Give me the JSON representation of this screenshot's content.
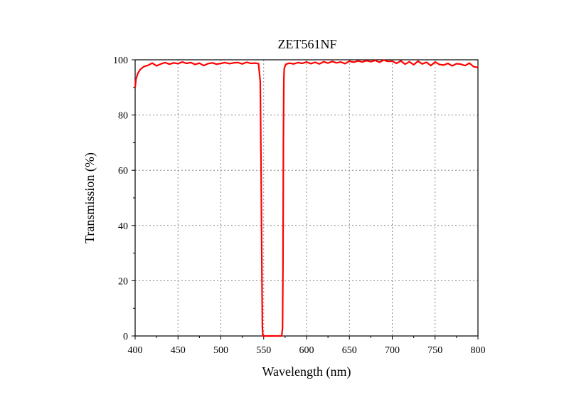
{
  "chart_data": {
    "type": "line",
    "title": "ZET561NF",
    "xlabel": "Wavelength (nm)",
    "ylabel": "Transmission (%)",
    "xlim": [
      400,
      800
    ],
    "ylim": [
      0,
      100
    ],
    "xticks": [
      400,
      450,
      500,
      550,
      600,
      650,
      700,
      750,
      800
    ],
    "yticks": [
      0,
      20,
      40,
      60,
      80,
      100
    ],
    "grid": true,
    "legend": "none",
    "series": [
      {
        "color": "#ff0000",
        "x": [
          400,
          401,
          403,
          406,
          410,
          415,
          420,
          425,
          430,
          435,
          440,
          445,
          450,
          455,
          460,
          465,
          470,
          475,
          480,
          485,
          490,
          495,
          500,
          505,
          510,
          515,
          520,
          525,
          530,
          535,
          540,
          544,
          546,
          547,
          548,
          548.5,
          549,
          550,
          560,
          571,
          572,
          572.5,
          573,
          573.5,
          574,
          576,
          580,
          585,
          590,
          595,
          600,
          605,
          610,
          615,
          620,
          625,
          630,
          635,
          640,
          645,
          650,
          655,
          660,
          665,
          670,
          675,
          680,
          685,
          690,
          695,
          700,
          705,
          710,
          715,
          720,
          725,
          730,
          735,
          740,
          745,
          750,
          755,
          760,
          765,
          770,
          775,
          780,
          785,
          790,
          795,
          800
        ],
        "y": [
          90,
          93,
          95,
          96.5,
          97.5,
          98,
          98.8,
          97.8,
          98.5,
          99,
          98.4,
          98.9,
          98.6,
          99.2,
          98.7,
          99,
          98.3,
          98.8,
          97.9,
          98.6,
          98.9,
          98.4,
          98.7,
          99,
          98.6,
          98.9,
          99,
          98.5,
          99.1,
          98.7,
          98.8,
          98.6,
          92,
          60,
          20,
          3,
          0,
          0,
          0,
          0,
          3,
          25,
          70,
          93,
          97,
          98.4,
          98.8,
          98.5,
          99,
          98.7,
          99.2,
          98.6,
          99.1,
          98.5,
          99.3,
          98.8,
          99.4,
          98.9,
          99.2,
          98.6,
          99.5,
          99.1,
          99.6,
          99.2,
          99.7,
          99.3,
          99.8,
          99.1,
          99.9,
          99.4,
          99.5,
          98.7,
          99.6,
          98.4,
          99.3,
          98.2,
          99.5,
          98.5,
          99.1,
          97.9,
          99.2,
          98.3,
          98.1,
          98.7,
          97.8,
          98.6,
          98.4,
          97.9,
          98.8,
          97.5,
          97.2
        ]
      }
    ]
  }
}
